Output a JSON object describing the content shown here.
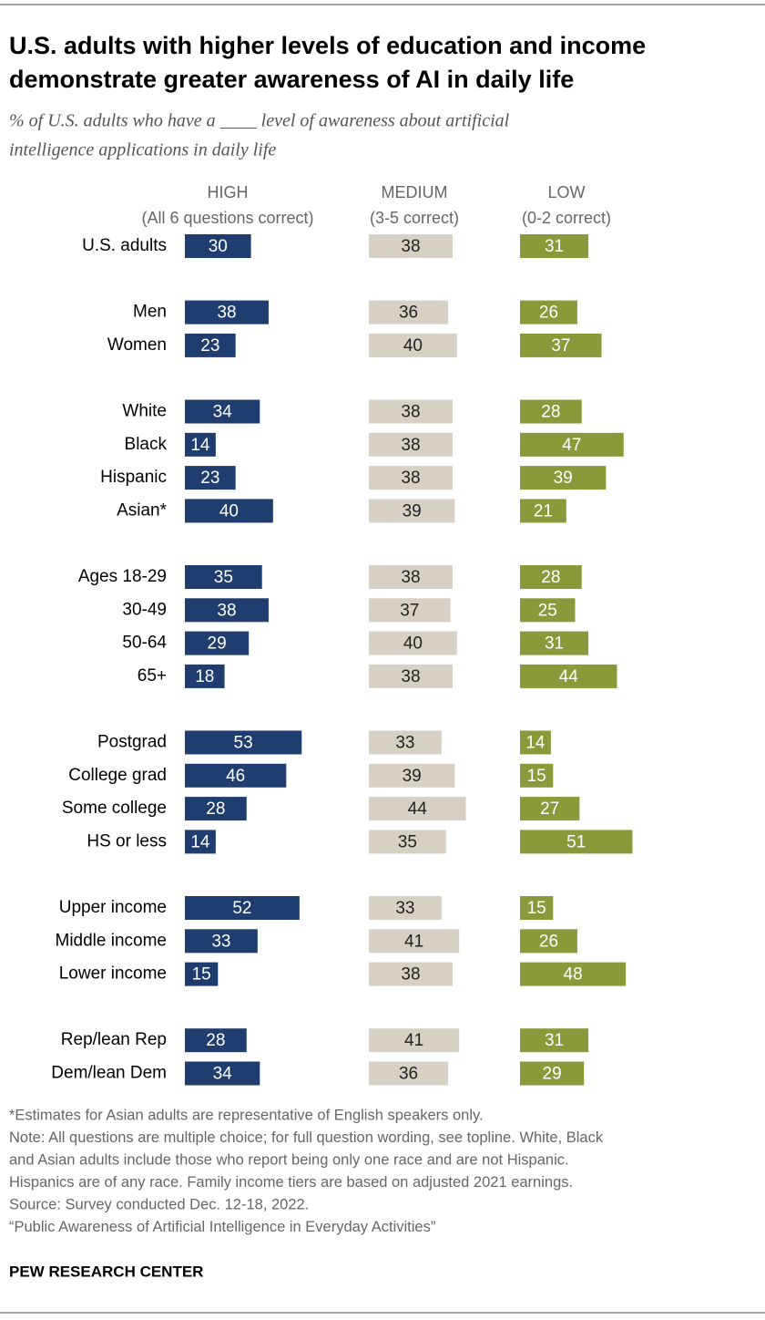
{
  "chart_data": {
    "type": "bar",
    "orientation": "horizontal",
    "title": [
      "U.S. adults with higher levels of education and income",
      "demonstrate greater awareness of AI in daily life"
    ],
    "subtitle": [
      "% of U.S. adults who have a ____ level of awareness about artificial",
      "intelligence applications in daily life"
    ],
    "categories": [
      "U.S. adults",
      null,
      "Men",
      "Women",
      null,
      "White",
      "Black",
      "Hispanic",
      "Asian*",
      null,
      "Ages 18-29",
      "30-49",
      "50-64",
      "65+",
      null,
      "Postgrad",
      "College grad",
      "Some college",
      "HS or less",
      null,
      "Upper income",
      "Middle income",
      "Lower income",
      null,
      "Rep/lean Rep",
      "Dem/lean Dem"
    ],
    "series": [
      {
        "name": "HIGH",
        "description": "(All 6 questions correct)",
        "color": "#1f3d6e",
        "label_color": "#ffffff",
        "values": [
          30,
          null,
          38,
          23,
          null,
          34,
          14,
          23,
          40,
          null,
          35,
          38,
          29,
          18,
          null,
          53,
          46,
          28,
          14,
          null,
          52,
          33,
          15,
          null,
          28,
          34
        ]
      },
      {
        "name": "MEDIUM",
        "description": "(3-5 correct)",
        "color": "#d6d1c4",
        "label_color": "#222222",
        "values": [
          38,
          null,
          36,
          40,
          null,
          38,
          38,
          38,
          39,
          null,
          38,
          37,
          40,
          38,
          null,
          33,
          39,
          44,
          35,
          null,
          33,
          41,
          38,
          null,
          41,
          36
        ]
      },
      {
        "name": "LOW",
        "description": "(0-2 correct)",
        "color": "#8a9a3b",
        "label_color": "#ffffff",
        "values": [
          31,
          null,
          26,
          37,
          null,
          28,
          47,
          39,
          21,
          null,
          28,
          25,
          31,
          44,
          null,
          14,
          15,
          27,
          51,
          null,
          15,
          26,
          48,
          null,
          31,
          29
        ]
      }
    ],
    "notes": [
      "*Estimates for Asian adults are representative of English speakers only.",
      "Note: All questions are multiple choice; for full question wording, see topline. White, Black",
      "and Asian adults include those who report being only one race and are not Hispanic.",
      "Hispanics are of any race. Family income tiers are based on adjusted 2021 earnings.",
      "Source: Survey conducted Dec. 12-18, 2022.",
      "“Public Awareness of Artificial Intelligence in Everyday Activities”"
    ],
    "source_brand": "PEW RESEARCH CENTER"
  }
}
